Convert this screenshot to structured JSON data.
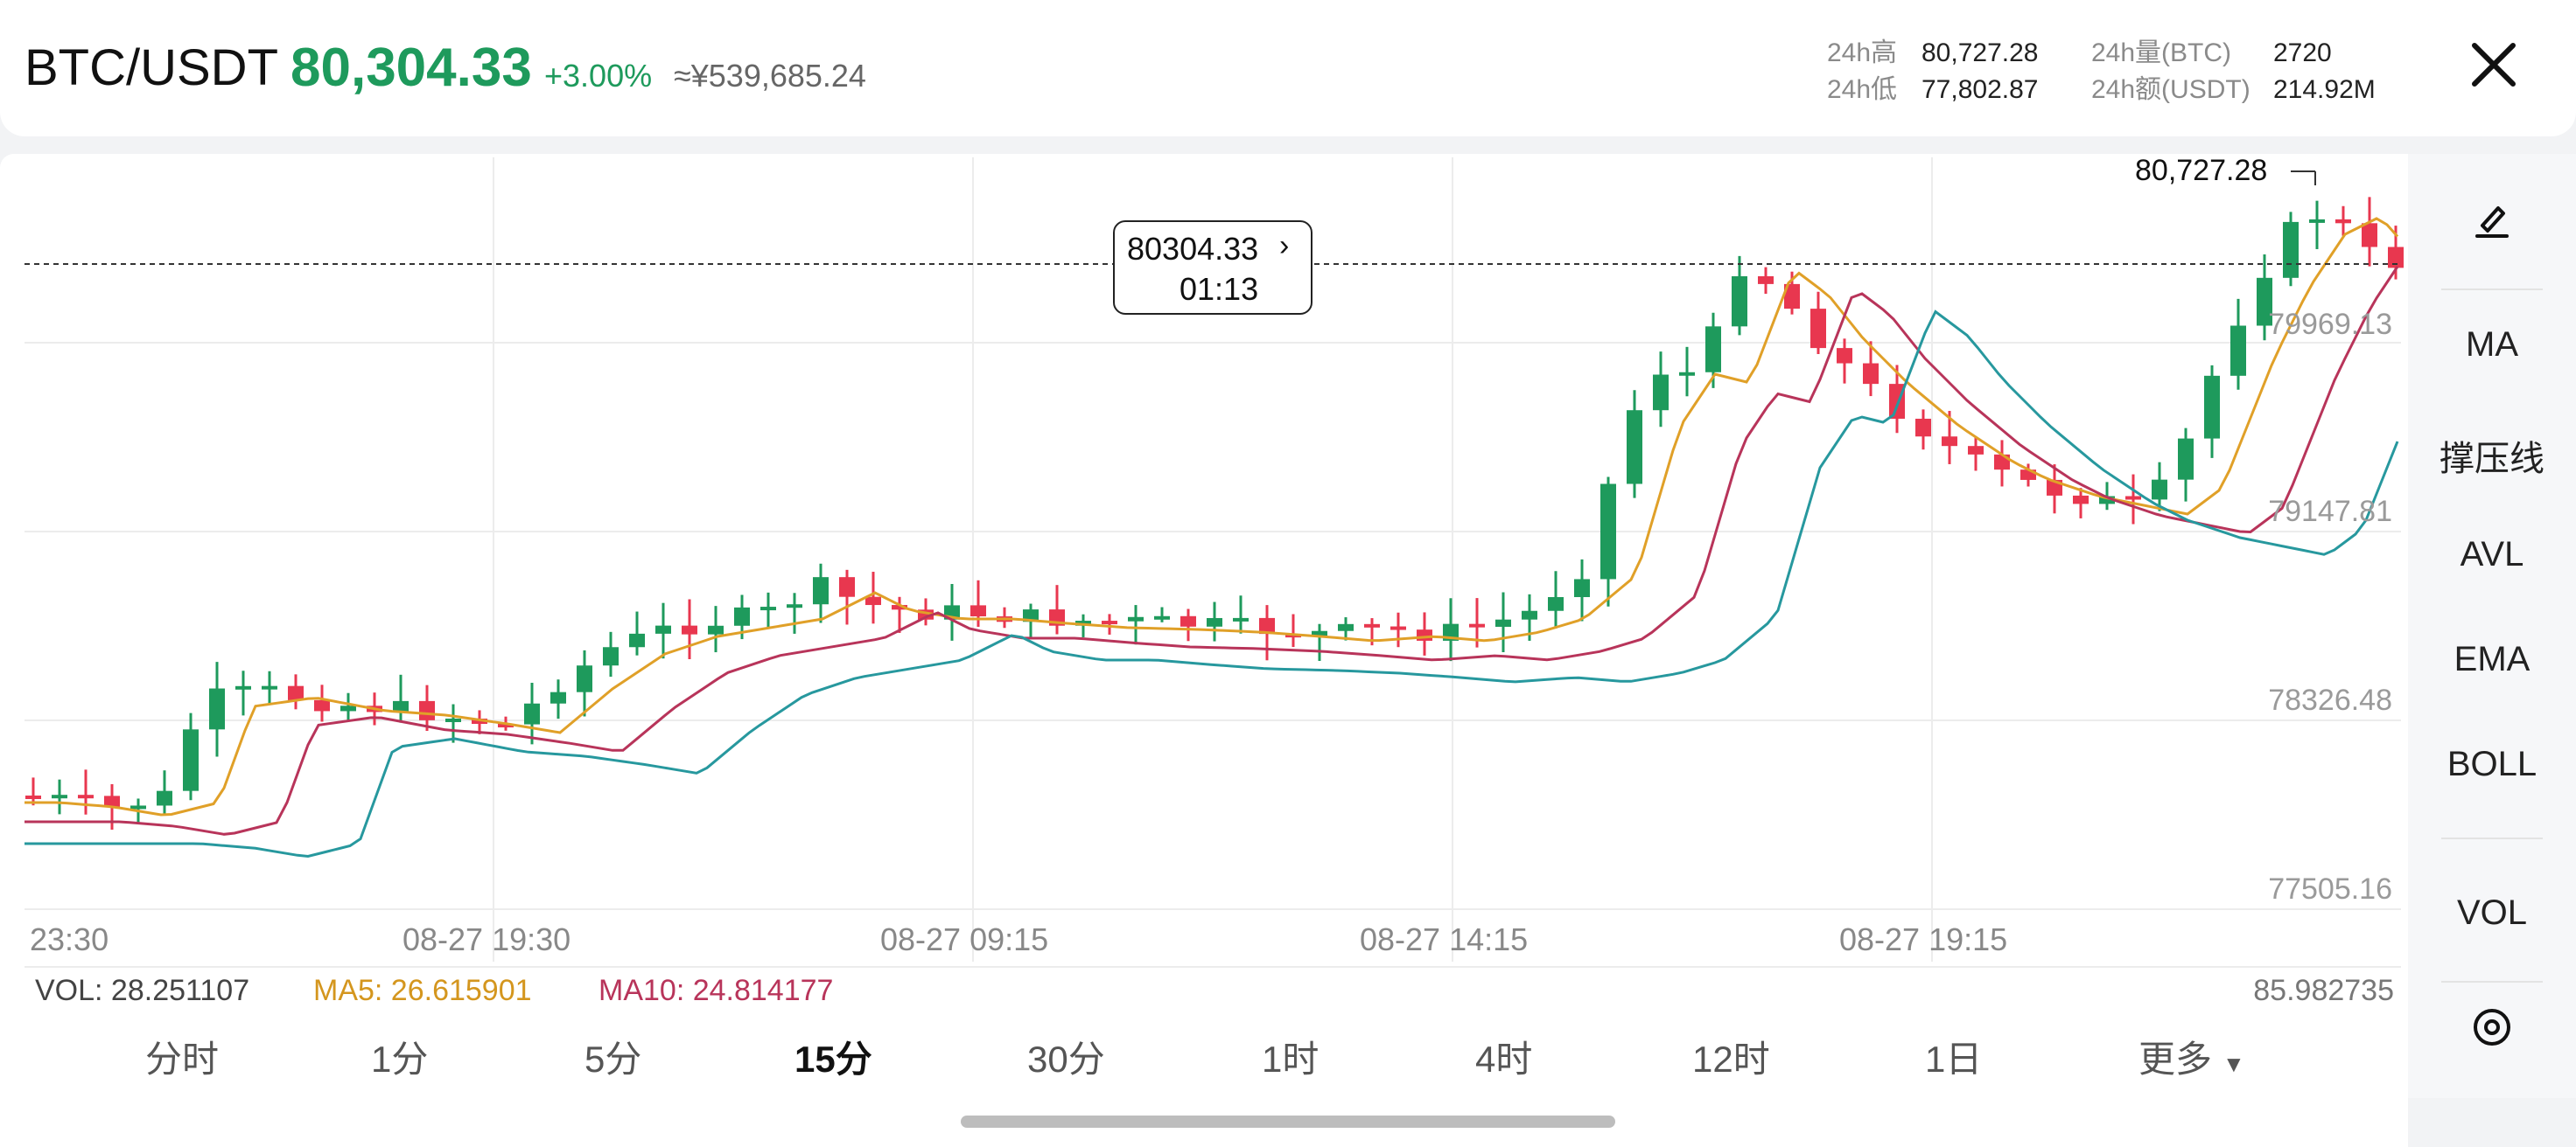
{
  "header": {
    "pair": "BTC/USDT",
    "price": "80,304.33",
    "change": "+3.00%",
    "cny": "≈¥539,685.24",
    "stats": {
      "high_label": "24h高",
      "high_value": "80,727.28",
      "low_label": "24h低",
      "low_value": "77,802.87",
      "vol_btc_label": "24h量(BTC)",
      "vol_btc_value": "2720",
      "vol_usdt_label": "24h额(USDT)",
      "vol_usdt_value": "214.92M"
    }
  },
  "chart": {
    "high_marker": "80,727.28",
    "tooltip": {
      "price": "80304.33",
      "countdown": "01:13"
    },
    "price_axis": [
      "79969.13",
      "79147.81",
      "78326.48",
      "77505.16"
    ],
    "time_axis": [
      "23:30",
      "08-27 19:30",
      "08-27 09:15",
      "08-27 14:15",
      "08-27 19:15"
    ],
    "volume": {
      "vol": "VOL: 28.251107",
      "ma5": "MA5: 26.615901",
      "ma10": "MA10: 24.814177",
      "right_value": "85.982735"
    },
    "colors": {
      "up": "#1e9a5c",
      "down": "#e8374f",
      "ma_short": "#e0a028",
      "ma_mid": "#b8345a",
      "ma_long": "#27989e"
    }
  },
  "side_menu": [
    "MA",
    "撑压线",
    "AVL",
    "EMA",
    "BOLL",
    "VOL"
  ],
  "side_icons": [
    "pen-icon",
    "target-icon"
  ],
  "intervals": [
    "分时",
    "1分",
    "5分",
    "15分",
    "30分",
    "1时",
    "4时",
    "12时",
    "1日",
    "更多"
  ],
  "active_interval": "15分"
}
